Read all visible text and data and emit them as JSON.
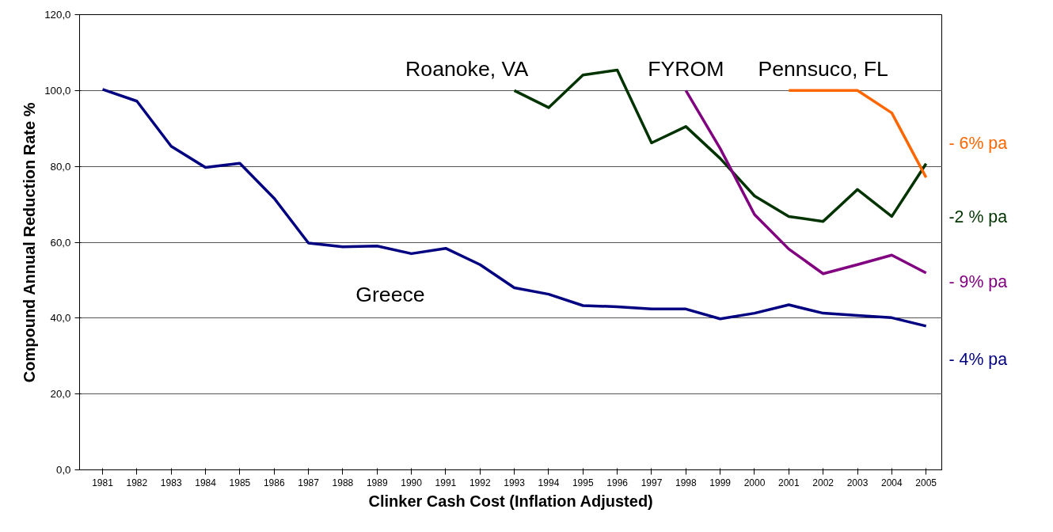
{
  "chart_data": {
    "type": "line",
    "xlabel": "Clinker Cash Cost (Inflation Adjusted)",
    "ylabel": "Compound Annual Reduction Rate %",
    "categories": [
      "1981",
      "1982",
      "1983",
      "1984",
      "1985",
      "1986",
      "1987",
      "1988",
      "1989",
      "1990",
      "1991",
      "1992",
      "1993",
      "1994",
      "1995",
      "1996",
      "1997",
      "1998",
      "1999",
      "2000",
      "2001",
      "2002",
      "2003",
      "2004",
      "2005"
    ],
    "series": [
      {
        "name": "Greece",
        "color": "#000080",
        "values": [
          100.3,
          97.2,
          85.3,
          79.7,
          80.8,
          71.6,
          59.8,
          58.8,
          59.0,
          57.0,
          58.4,
          54.1,
          48.0,
          46.3,
          43.3,
          43.0,
          42.4,
          42.4,
          39.8,
          41.3,
          43.5,
          41.3,
          40.7,
          40.1,
          37.9
        ]
      },
      {
        "name": "Roanoke, VA",
        "color": "#003300",
        "values": [
          null,
          null,
          null,
          null,
          null,
          null,
          null,
          null,
          null,
          null,
          null,
          null,
          100,
          95.5,
          104.1,
          105.4,
          86.2,
          90.5,
          82.1,
          72.2,
          66.8,
          65.5,
          73.9,
          66.8,
          80.7
        ]
      },
      {
        "name": "FYROM",
        "color": "#800080",
        "values": [
          null,
          null,
          null,
          null,
          null,
          null,
          null,
          null,
          null,
          null,
          null,
          null,
          null,
          null,
          null,
          null,
          null,
          100,
          84.7,
          67.3,
          58.2,
          51.7,
          54.1,
          56.6,
          51.9
        ]
      },
      {
        "name": "Pennsuco, FL",
        "color": "#ff6600",
        "values": [
          null,
          null,
          null,
          null,
          null,
          null,
          null,
          null,
          null,
          null,
          null,
          null,
          null,
          null,
          null,
          null,
          null,
          null,
          null,
          null,
          100,
          100,
          100,
          94.1,
          77.1
        ]
      }
    ],
    "annotations": [
      "- 4% pa",
      "-2 % pa",
      "- 9% pa",
      "- 6% pa"
    ],
    "ylim": [
      0,
      120
    ],
    "yticks": [
      {
        "value": 0,
        "label": "0,0"
      },
      {
        "value": 20,
        "label": "20,0"
      },
      {
        "value": 40,
        "label": "40,0"
      },
      {
        "value": 60,
        "label": "60,0"
      },
      {
        "value": 80,
        "label": "80,0"
      },
      {
        "value": 100,
        "label": "100,0"
      },
      {
        "value": 120,
        "label": "120,0"
      }
    ],
    "grid": "y",
    "legend": false,
    "line_style": "solid",
    "marker": "none"
  }
}
